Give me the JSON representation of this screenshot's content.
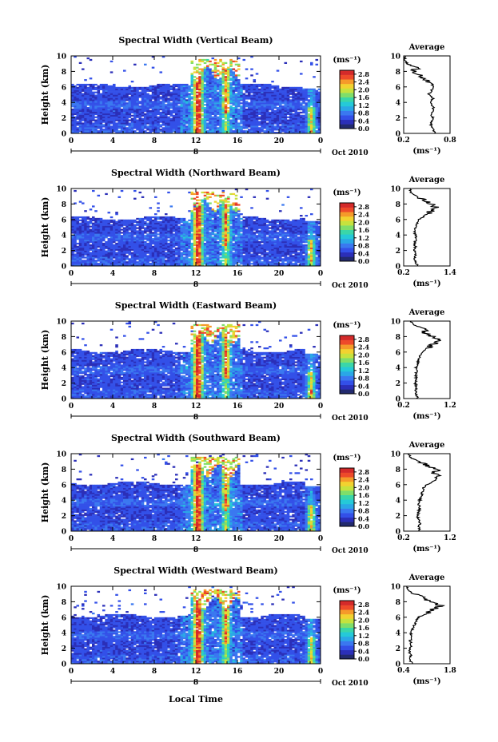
{
  "figure": {
    "xlabel": "Local Time",
    "date_label": "Oct 2010",
    "day_label": "8",
    "cbar_unit": "(ms⁻¹)",
    "avg_title": "Average",
    "avg_unit": "(ms⁻¹)",
    "colors": [
      "#222a6e",
      "#2b2fb8",
      "#3350e8",
      "#3a78f0",
      "#2aa7e6",
      "#25c9d8",
      "#3ad6a9",
      "#7fde6a",
      "#c6e23e",
      "#f2d230",
      "#f59a2a",
      "#ee4a2a",
      "#d42a2a"
    ],
    "no_data_color": "#ffffff"
  },
  "chart_data": [
    {
      "type": "heatmap",
      "title": "Spectral Width (Vertical Beam)",
      "ylabel": "Height (km)",
      "xlim": [
        0,
        24
      ],
      "ylim": [
        0,
        10
      ],
      "xticks": [
        "0",
        "4",
        "8",
        "12",
        "16",
        "20",
        "0"
      ],
      "yticks": [
        "0",
        "2",
        "4",
        "6",
        "8",
        "10"
      ],
      "cbar_ticks": [
        "0.0",
        "0.4",
        "0.8",
        "1.2",
        "1.6",
        "2.0",
        "2.4",
        "2.8"
      ],
      "cbar_range": [
        0,
        3.0
      ],
      "profile": {
        "xlim": [
          0.2,
          0.8
        ],
        "xticks": [
          "0.2",
          "0.8"
        ],
        "heights_km": [
          0,
          0.5,
          1,
          1.5,
          2,
          2.5,
          3,
          3.5,
          4,
          4.5,
          5,
          5.5,
          6,
          6.5,
          7,
          7.5,
          8,
          8.5,
          9,
          9.5,
          10
        ],
        "values": [
          0.62,
          0.58,
          0.55,
          0.56,
          0.58,
          0.55,
          0.6,
          0.57,
          0.55,
          0.58,
          0.52,
          0.56,
          0.6,
          0.55,
          0.48,
          0.4,
          0.32,
          0.38,
          0.25,
          0.22,
          0.22
        ]
      }
    },
    {
      "type": "heatmap",
      "title": "Spectral Width (Northward Beam)",
      "ylabel": "Height (km)",
      "xlim": [
        0,
        24
      ],
      "ylim": [
        0,
        10
      ],
      "xticks": [
        "0",
        "4",
        "8",
        "12",
        "16",
        "20",
        "0"
      ],
      "yticks": [
        "0",
        "2",
        "4",
        "6",
        "8",
        "10"
      ],
      "cbar_ticks": [
        "0.0",
        "0.4",
        "0.8",
        "1.2",
        "1.6",
        "2.0",
        "2.4",
        "2.8"
      ],
      "cbar_range": [
        0,
        3.0
      ],
      "profile": {
        "xlim": [
          0.2,
          1.4
        ],
        "xticks": [
          "0.2",
          "1.4"
        ],
        "heights_km": [
          0,
          0.5,
          1,
          1.5,
          2,
          2.5,
          3,
          3.5,
          4,
          4.5,
          5,
          5.5,
          6,
          6.5,
          7,
          7.5,
          8,
          8.5,
          9,
          9.5,
          10
        ],
        "values": [
          0.55,
          0.52,
          0.48,
          0.5,
          0.47,
          0.5,
          0.48,
          0.52,
          0.5,
          0.47,
          0.5,
          0.55,
          0.6,
          0.75,
          0.9,
          1.05,
          0.9,
          0.75,
          0.55,
          0.4,
          0.35
        ]
      }
    },
    {
      "type": "heatmap",
      "title": "Spectral Width (Eastward Beam)",
      "ylabel": "Height (km)",
      "xlim": [
        0,
        24
      ],
      "ylim": [
        0,
        10
      ],
      "xticks": [
        "0",
        "4",
        "8",
        "12",
        "16",
        "20",
        "0"
      ],
      "yticks": [
        "0",
        "2",
        "4",
        "6",
        "8",
        "10"
      ],
      "cbar_ticks": [
        "0.0",
        "0.4",
        "0.8",
        "1.2",
        "1.6",
        "2.0",
        "2.4",
        "2.8"
      ],
      "cbar_range": [
        0,
        3.0
      ],
      "profile": {
        "xlim": [
          0.2,
          1.2
        ],
        "xticks": [
          "0.2",
          "1.2"
        ],
        "heights_km": [
          0,
          0.5,
          1,
          1.5,
          2,
          2.5,
          3,
          3.5,
          4,
          4.5,
          5,
          5.5,
          6,
          6.5,
          7,
          7.5,
          8,
          8.5,
          9,
          9.5,
          10
        ],
        "values": [
          0.5,
          0.48,
          0.46,
          0.47,
          0.45,
          0.47,
          0.46,
          0.48,
          0.47,
          0.5,
          0.52,
          0.55,
          0.6,
          0.7,
          0.85,
          1.0,
          0.8,
          0.65,
          0.7,
          0.4,
          0.35
        ]
      }
    },
    {
      "type": "heatmap",
      "title": "Spectral Width (Southward Beam)",
      "ylabel": "Height (km)",
      "xlim": [
        0,
        24
      ],
      "ylim": [
        0,
        10
      ],
      "xticks": [
        "0",
        "4",
        "8",
        "12",
        "16",
        "20",
        "0"
      ],
      "yticks": [
        "0",
        "2",
        "4",
        "6",
        "8",
        "10"
      ],
      "cbar_ticks": [
        "0.0",
        "0.4",
        "0.8",
        "1.2",
        "1.6",
        "2.0",
        "2.4",
        "2.8"
      ],
      "cbar_range": [
        0,
        3.0
      ],
      "profile": {
        "xlim": [
          0.2,
          1.2
        ],
        "xticks": [
          "0.2",
          "1.2"
        ],
        "heights_km": [
          0,
          0.5,
          1,
          1.5,
          2,
          2.5,
          3,
          3.5,
          4,
          4.5,
          5,
          5.5,
          6,
          6.5,
          7,
          7.5,
          8,
          8.5,
          9,
          9.5,
          10
        ],
        "values": [
          0.55,
          0.52,
          0.55,
          0.52,
          0.5,
          0.52,
          0.55,
          0.52,
          0.55,
          0.58,
          0.6,
          0.62,
          0.7,
          0.85,
          0.95,
          0.85,
          0.95,
          0.7,
          0.55,
          0.35,
          0.3
        ]
      }
    },
    {
      "type": "heatmap",
      "title": "Spectral Width (Westward Beam)",
      "ylabel": "Height (km)",
      "xlim": [
        0,
        24
      ],
      "ylim": [
        0,
        10
      ],
      "xticks": [
        "0",
        "4",
        "8",
        "12",
        "16",
        "20",
        "0"
      ],
      "yticks": [
        "0",
        "2",
        "4",
        "6",
        "8",
        "10"
      ],
      "cbar_ticks": [
        "0.0",
        "0.4",
        "0.8",
        "1.2",
        "1.6",
        "2.0",
        "2.4",
        "2.8"
      ],
      "cbar_range": [
        0,
        3.0
      ],
      "profile": {
        "xlim": [
          0.4,
          1.8
        ],
        "xticks": [
          "0.4",
          "1.8"
        ],
        "heights_km": [
          0,
          0.5,
          1,
          1.5,
          2,
          2.5,
          3,
          3.5,
          4,
          4.5,
          5,
          5.5,
          6,
          6.5,
          7,
          7.5,
          8,
          8.5,
          9,
          9.5,
          10
        ],
        "values": [
          0.65,
          0.6,
          0.62,
          0.58,
          0.6,
          0.62,
          0.6,
          0.65,
          0.62,
          0.68,
          0.72,
          0.78,
          0.85,
          1.1,
          1.3,
          1.5,
          1.25,
          1.0,
          0.7,
          0.55,
          0.5
        ]
      }
    }
  ]
}
